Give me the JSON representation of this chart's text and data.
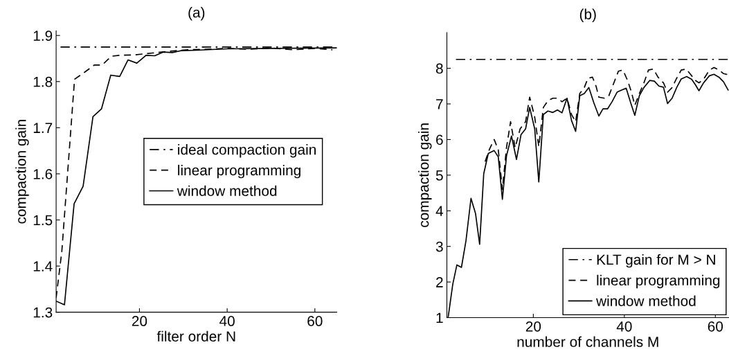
{
  "chart_data": [
    {
      "type": "line",
      "title": "(a)",
      "xlabel": "filter order N",
      "ylabel": "compaction gain",
      "xlim": [
        1,
        65
      ],
      "xticks": [
        20,
        40,
        60
      ],
      "ylim": [
        1.3,
        1.91
      ],
      "yticks": [
        1.3,
        1.4,
        1.5,
        1.6,
        1.7,
        1.8,
        1.9
      ],
      "grid": false,
      "legend": "center right",
      "series": [
        {
          "name": "ideal compaction gain",
          "color": "#000000",
          "line_style": "dashdot",
          "x": [
            2,
            65
          ],
          "values": [
            1.875,
            1.875
          ]
        },
        {
          "name": "linear programming",
          "color": "#000000",
          "line_style": "dashed",
          "x": [
            1,
            2.3,
            5.2,
            7.6,
            9.7,
            11.5,
            13.6,
            15.5,
            19,
            23,
            27,
            31,
            35,
            40,
            45,
            50,
            55,
            60,
            64
          ],
          "values": [
            1.331,
            1.432,
            1.805,
            1.821,
            1.836,
            1.836,
            1.855,
            1.857,
            1.858,
            1.862,
            1.866,
            1.869,
            1.87,
            1.872,
            1.87,
            1.873,
            1.869,
            1.872,
            1.869
          ]
        },
        {
          "name": "window method",
          "color": "#000000",
          "line_style": "solid",
          "x": [
            1,
            2.9,
            5.1,
            7.15,
            9.4,
            11.35,
            13.45,
            15.5,
            17.4,
            19.4,
            21.5,
            23.5,
            25.4,
            27.5,
            29.5,
            33,
            40,
            50,
            65
          ],
          "values": [
            1.324,
            1.316,
            1.535,
            1.573,
            1.724,
            1.741,
            1.814,
            1.811,
            1.847,
            1.84,
            1.857,
            1.856,
            1.864,
            1.863,
            1.867,
            1.868,
            1.871,
            1.872,
            1.873
          ]
        }
      ]
    },
    {
      "type": "line",
      "title": "(b)",
      "xlabel": "number of channels M",
      "ylabel": "compaction gain",
      "xlim": [
        1,
        63
      ],
      "xticks": [
        20,
        40,
        60
      ],
      "ylim": [
        1,
        9
      ],
      "yticks": [
        1,
        2,
        3,
        4,
        5,
        6,
        7,
        8
      ],
      "grid": false,
      "legend": "lower right",
      "series": [
        {
          "name": "KLT gain for M > N",
          "color": "#000000",
          "line_style": "dashdot",
          "x": [
            3,
            63
          ],
          "values": [
            8.25,
            8.25
          ]
        },
        {
          "name": "linear programming",
          "color": "#000000",
          "line_style": "dashed",
          "x": [
            9.4,
            10.4,
            11.4,
            12.3,
            13.2,
            14.1,
            15.0,
            16.0,
            17.1,
            18.3,
            19.2,
            20.3,
            21.2,
            22.2,
            23.2,
            24.3,
            25.3,
            26.3,
            27.4,
            28.4,
            29.3,
            30.2,
            31.2,
            32.0,
            33.0,
            33.8,
            34.4,
            35.6,
            36.6,
            37.6,
            38.7,
            39.7,
            40.7,
            41.5,
            42.3,
            43.3,
            44.3,
            45.3,
            46.4,
            47.4,
            48.6,
            49.5,
            50.5,
            51.5,
            52.5,
            53.6,
            54.6,
            55.6,
            56.4,
            57.4,
            58.7,
            59.7,
            60.8,
            61.8,
            62.8
          ],
          "values": [
            5.38,
            5.74,
            6.0,
            5.71,
            4.6,
            5.77,
            6.5,
            5.77,
            6.3,
            6.5,
            7.19,
            6.63,
            5.8,
            6.9,
            7.09,
            7.16,
            7.16,
            7.06,
            7.16,
            6.7,
            6.5,
            7.29,
            7.46,
            7.72,
            7.75,
            7.49,
            7.19,
            7.16,
            7.23,
            7.56,
            7.92,
            7.95,
            7.66,
            7.36,
            6.96,
            7.29,
            7.59,
            7.95,
            7.98,
            7.75,
            7.59,
            7.33,
            7.46,
            7.72,
            7.95,
            7.98,
            7.82,
            7.66,
            7.59,
            7.69,
            7.95,
            8.02,
            7.95,
            7.85,
            7.82
          ]
        },
        {
          "name": "window method",
          "color": "#000000",
          "line_style": "solid",
          "x": [
            1.3,
            2.3,
            3.2,
            4.2,
            5.2,
            6.3,
            7.3,
            8.2,
            9.1,
            10.1,
            11.4,
            12.3,
            13.2,
            14.1,
            15.2,
            16.3,
            17.3,
            18.3,
            19.2,
            20.3,
            21.2,
            22.2,
            23.2,
            24.3,
            25.3,
            26.3,
            27.4,
            28.4,
            29.3,
            30.2,
            31.2,
            32.2,
            33.3,
            34.4,
            35.3,
            36.3,
            37.3,
            38.4,
            39.4,
            40.4,
            41.4,
            42.3,
            43.3,
            44.3,
            45.6,
            46.6,
            47.6,
            48.6,
            49.5,
            50.5,
            51.5,
            52.5,
            53.7,
            54.8,
            55.6,
            56.4,
            57.4,
            58.7,
            59.7,
            60.8,
            61.8,
            62.8
          ],
          "values": [
            1.03,
            1.94,
            2.48,
            2.41,
            3.16,
            4.35,
            3.92,
            3.06,
            5.04,
            5.61,
            5.69,
            5.51,
            4.32,
            5.54,
            6.1,
            5.44,
            6.14,
            6.3,
            6.9,
            6.3,
            4.81,
            6.7,
            6.8,
            6.76,
            6.83,
            6.75,
            7.16,
            6.53,
            6.23,
            7.23,
            7.29,
            7.46,
            7.03,
            6.66,
            6.86,
            6.86,
            7.06,
            7.33,
            7.39,
            7.44,
            7.03,
            6.68,
            7.23,
            7.46,
            7.66,
            7.64,
            7.5,
            7.47,
            7.01,
            7.16,
            7.46,
            7.7,
            7.77,
            7.69,
            7.54,
            7.37,
            7.59,
            7.79,
            7.83,
            7.75,
            7.62,
            7.39
          ]
        }
      ]
    }
  ]
}
